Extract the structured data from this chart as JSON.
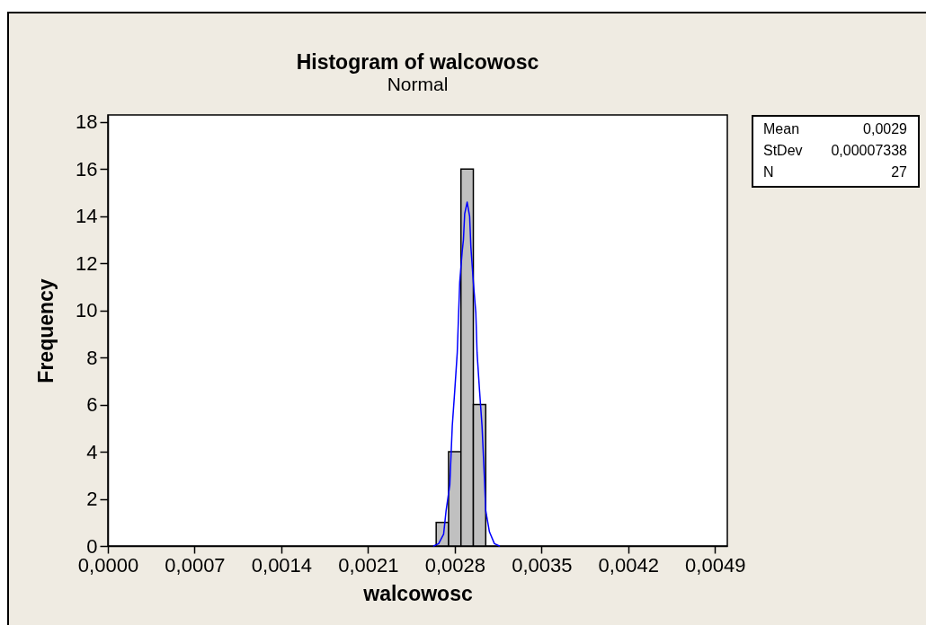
{
  "chart_data": {
    "type": "histogram",
    "title": "Histogram of walcowosc",
    "subtitle": "Normal",
    "xlabel": "walcowosc",
    "ylabel": "Frequency",
    "bins": [
      0.00265,
      0.00275,
      0.00285,
      0.00295,
      0.00305
    ],
    "values": [
      1,
      4,
      16,
      6
    ],
    "color": "#c0c0c0",
    "series": [
      {
        "type": "line",
        "color": "#0000ff",
        "x": [
          0.00263,
          0.00267,
          0.00271,
          0.00273,
          0.00276,
          0.00278,
          0.0028,
          0.00282,
          0.00283,
          0.00284,
          0.00286,
          0.00287,
          0.00288,
          0.0029,
          0.00292,
          0.00293,
          0.00295,
          0.00297,
          0.00298,
          0.003,
          0.00302,
          0.00304,
          0.00305,
          0.00308,
          0.00312,
          0.00316
        ],
        "values": [
          0,
          0.1,
          0.5,
          1.5,
          2.6,
          5.1,
          6.6,
          8.2,
          9.7,
          11.2,
          12.5,
          13.0,
          14.1,
          14.6,
          14.0,
          12.7,
          11.2,
          9.9,
          8.2,
          6.6,
          5.1,
          2.8,
          1.5,
          0.6,
          0.1,
          0
        ]
      }
    ],
    "xlim": [
      0,
      0.005
    ],
    "xticks": [
      {
        "value": 0,
        "label": "0,0000"
      },
      {
        "value": 0.0007,
        "label": "0,0007"
      },
      {
        "value": 0.0014,
        "label": "0,0014"
      },
      {
        "value": 0.0021,
        "label": "0,0021"
      },
      {
        "value": 0.0028,
        "label": "0,0028"
      },
      {
        "value": 0.0035,
        "label": "0,0035"
      },
      {
        "value": 0.0042,
        "label": "0,0042"
      },
      {
        "value": 0.0049,
        "label": "0,0049"
      }
    ],
    "ylim": [
      0,
      18.3
    ],
    "yticks": [
      0,
      2,
      4,
      6,
      8,
      10,
      12,
      14,
      16,
      18
    ],
    "annotations": [
      "Mean",
      "0,0029",
      "StDev",
      "0,00007338",
      "N",
      "27"
    ]
  }
}
